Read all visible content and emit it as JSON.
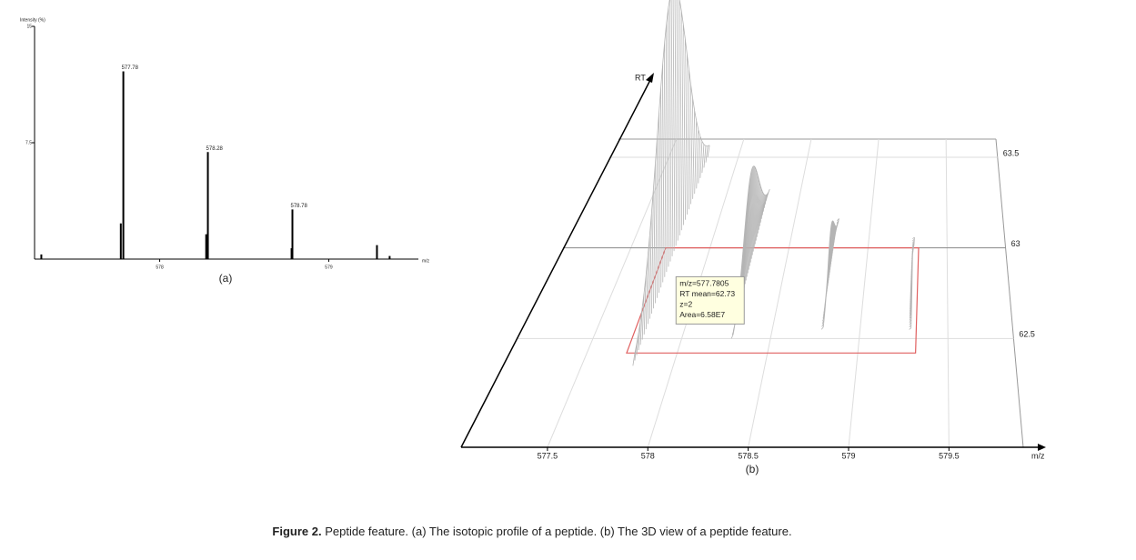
{
  "chart_data": [
    {
      "type": "stem",
      "x_label": "m/z",
      "y_label": "Intensity (%)",
      "caption": "(a)",
      "x": [
        577.3,
        577.77,
        577.785,
        578.275,
        578.285,
        578.78,
        578.785,
        579.285,
        579.36
      ],
      "values": [
        0.3,
        2.3,
        12.1,
        1.6,
        6.9,
        0.7,
        3.2,
        0.9,
        0.2
      ],
      "color": "#000000",
      "top_tick_color": "#d03020",
      "xlim": [
        577.26,
        579.53
      ],
      "xticks": [
        578,
        579
      ],
      "ylim": [
        0,
        15
      ],
      "yticks": [
        7.5,
        15
      ],
      "annotations": [
        {
          "x": 577.785,
          "y": 12.1,
          "text": "577.78"
        },
        {
          "x": 578.285,
          "y": 6.9,
          "text": "578.28"
        },
        {
          "x": 578.785,
          "y": 3.2,
          "text": "578.78"
        }
      ]
    },
    {
      "type": "ridge3d",
      "x_label": "m/z",
      "y_label": "RT",
      "caption": "(b)",
      "xlim": [
        577.07,
        579.87
      ],
      "xticks": [
        577.5,
        578,
        578.5,
        579,
        579.5
      ],
      "ylim": [
        61.9,
        63.6
      ],
      "yticks": [
        62.5,
        63,
        63.5
      ],
      "color": "#b4b4b4",
      "traces": [
        {
          "x": 577.78,
          "rt": [
            62.35,
            63.5
          ],
          "intensity": 100
        },
        {
          "x": 578.28,
          "rt": [
            62.5,
            63.3
          ],
          "intensity": 35
        },
        {
          "x": 578.78,
          "rt": [
            62.55,
            63.15
          ],
          "intensity": 18
        },
        {
          "x": 579.28,
          "rt": [
            62.55,
            63.05
          ],
          "intensity": 12
        }
      ],
      "box": {
        "xlim": [
          577.72,
          579.32
        ],
        "ylim": [
          62.42,
          63.0
        ],
        "color": "#e06060"
      },
      "tooltip": [
        "m/z=577.7805",
        "RT mean=62.73",
        "z=2",
        "Area=6.58E7"
      ]
    }
  ],
  "caption": {
    "label": "Figure 2.",
    "text": "Peptide feature. (a) The isotopic profile of a peptide. (b) The 3D view of a peptide feature."
  }
}
